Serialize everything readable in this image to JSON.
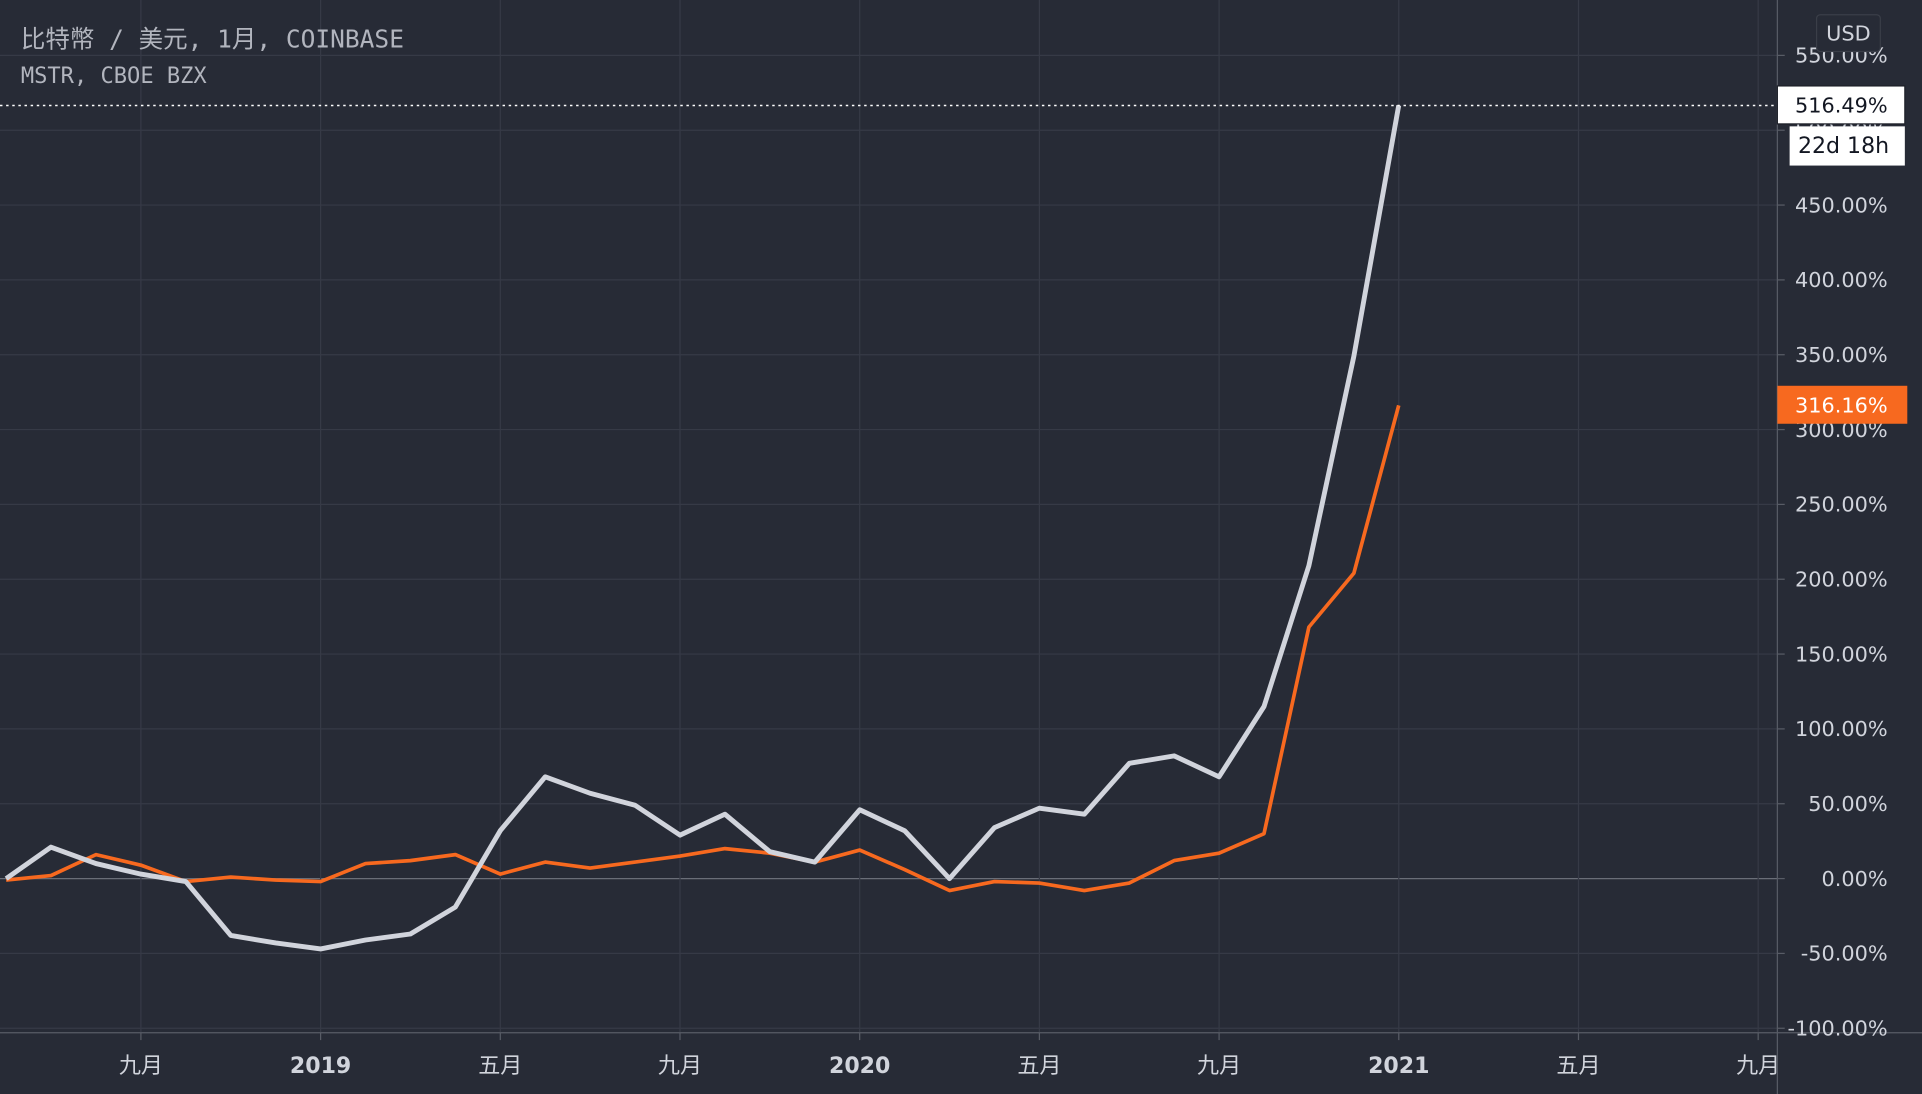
{
  "chart_data": {
    "type": "line",
    "categories": [
      null,
      null,
      null,
      "九月",
      null,
      null,
      null,
      "2019",
      null,
      null,
      null,
      "五月",
      null,
      null,
      null,
      "九月",
      null,
      null,
      null,
      "2020",
      null,
      null,
      null,
      "五月",
      null,
      null,
      null,
      "九月",
      null,
      null,
      null,
      "2021",
      null,
      null,
      null,
      "五月",
      null,
      null,
      null,
      "九月"
    ],
    "series": [
      {
        "name": "比特幣 / 美元, 1月, COINBASE",
        "color": "#d1d4dc",
        "values": [
          0,
          21,
          10,
          3,
          -2,
          -38,
          -43,
          -47,
          -41,
          -37,
          -19,
          32,
          68,
          57,
          49,
          29,
          43,
          18,
          11,
          46,
          32,
          0,
          34,
          47,
          43,
          77,
          82,
          68,
          115,
          209,
          349,
          516.49,
          null,
          null,
          null,
          null,
          null,
          null,
          null,
          null
        ],
        "value_labels": [
          null,
          null,
          null,
          null,
          null,
          null,
          null,
          null,
          null,
          null,
          null,
          null,
          null,
          null,
          null,
          null,
          null,
          null,
          null,
          null,
          null,
          null,
          null,
          null,
          null,
          null,
          null,
          null,
          null,
          null,
          null,
          "516.49%",
          null,
          null,
          null,
          null,
          null,
          null,
          null,
          null
        ]
      },
      {
        "name": "MSTR, CBOE BZX",
        "color": "#f7691f",
        "values": [
          -1,
          2,
          16,
          9,
          -2,
          1,
          -1,
          -2,
          10,
          12,
          16,
          3,
          11,
          7,
          11,
          15,
          20,
          17,
          11,
          19,
          6,
          -8,
          -2,
          -3,
          -8,
          -3,
          12,
          17,
          30,
          168,
          204,
          316.16,
          null,
          null,
          null,
          null,
          null,
          null,
          null,
          null
        ],
        "value_labels": [
          null,
          null,
          null,
          null,
          null,
          null,
          null,
          null,
          null,
          null,
          null,
          null,
          null,
          null,
          null,
          null,
          null,
          null,
          null,
          null,
          null,
          null,
          null,
          null,
          null,
          null,
          null,
          null,
          null,
          null,
          null,
          "316.16%",
          null,
          null,
          null,
          null,
          null,
          null,
          null,
          null
        ]
      }
    ],
    "ylim": [
      -103,
      587
    ],
    "yticks": [
      {
        "value": -100,
        "label": "-100.00%"
      },
      {
        "value": -50,
        "label": "-50.00%"
      },
      {
        "value": 0,
        "label": "0.00%"
      },
      {
        "value": 50,
        "label": "50.00%"
      },
      {
        "value": 100,
        "label": "100.00%"
      },
      {
        "value": 150,
        "label": "150.00%"
      },
      {
        "value": 200,
        "label": "200.00%"
      },
      {
        "value": 250,
        "label": "250.00%"
      },
      {
        "value": 300,
        "label": "300.00%"
      },
      {
        "value": 350,
        "label": "350.00%"
      },
      {
        "value": 400,
        "label": "400.00%"
      },
      {
        "value": 450,
        "label": "450.00%"
      },
      {
        "value": 500,
        "label": "500.00%"
      },
      {
        "value": 550,
        "label": "550.00%"
      }
    ],
    "grid": true,
    "countdown": "22d 18h",
    "currency": "USD"
  }
}
